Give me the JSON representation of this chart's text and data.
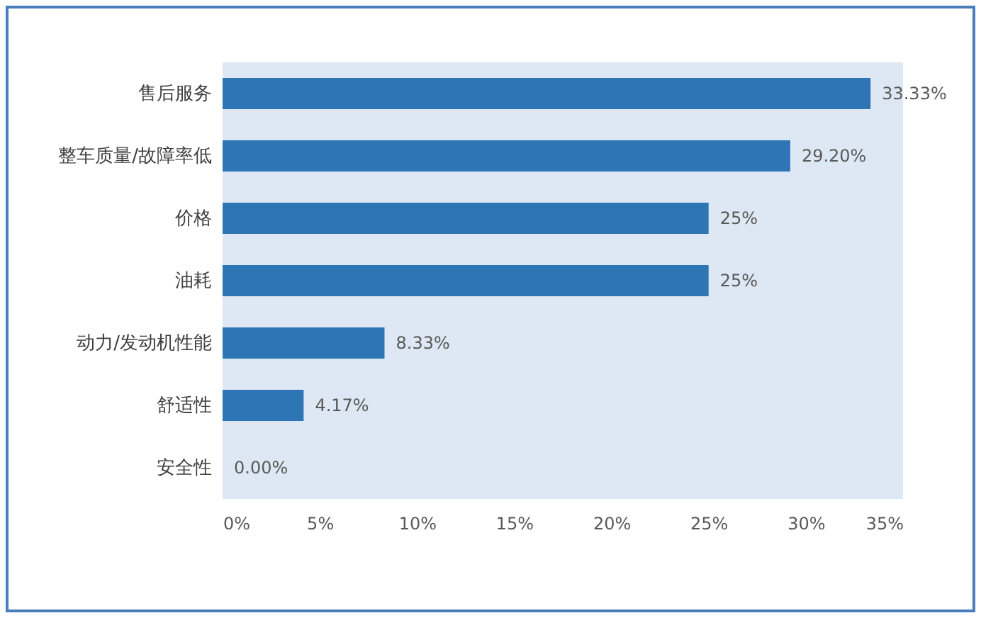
{
  "chart_data": {
    "type": "bar",
    "orientation": "horizontal",
    "categories": [
      "售后服务",
      "整车质量/故障率低",
      "价格",
      "油耗",
      "动力/发动机性能",
      "舒适性",
      "安全性"
    ],
    "values": [
      33.33,
      29.2,
      25,
      25,
      8.33,
      4.17,
      0
    ],
    "value_labels": [
      "33.33%",
      "29.20%",
      "25%",
      "25%",
      "8.33%",
      "4.17%",
      "0.00%"
    ],
    "color": "#2e75b6",
    "xlim": [
      0,
      35
    ],
    "xticks": [
      {
        "value": 0,
        "label": "0%"
      },
      {
        "value": 5,
        "label": "5%"
      },
      {
        "value": 10,
        "label": "10%"
      },
      {
        "value": 15,
        "label": "15%"
      },
      {
        "value": 20,
        "label": "20%"
      },
      {
        "value": 25,
        "label": "25%"
      },
      {
        "value": 30,
        "label": "30%"
      },
      {
        "value": 35,
        "label": "35%"
      }
    ],
    "grid": false
  }
}
